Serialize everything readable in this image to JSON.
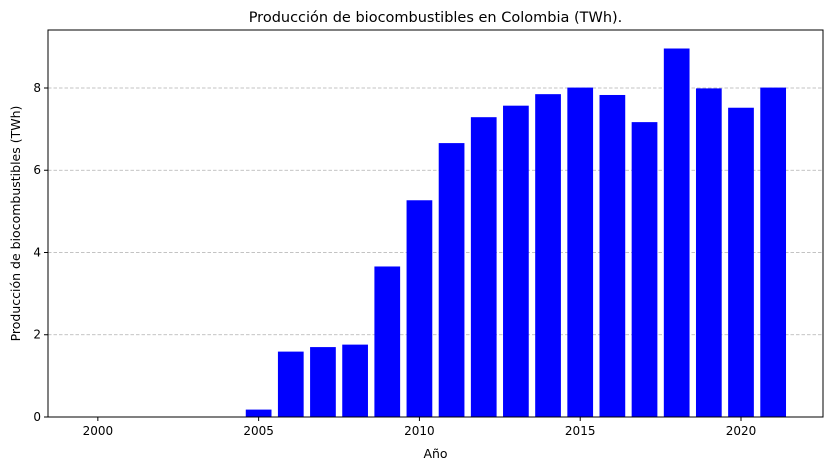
{
  "chart_data": {
    "type": "bar",
    "title": "Producción de biocombustibles en Colombia (TWh).",
    "xlabel": "Año",
    "ylabel": "Producción de biocombustibles (TWh)",
    "x": [
      2000,
      2001,
      2002,
      2003,
      2004,
      2005,
      2006,
      2007,
      2008,
      2009,
      2010,
      2011,
      2012,
      2013,
      2014,
      2015,
      2016,
      2017,
      2018,
      2019,
      2020,
      2021
    ],
    "values": [
      0,
      0,
      0,
      0,
      0,
      0.18,
      1.59,
      1.7,
      1.76,
      3.66,
      5.27,
      6.66,
      7.29,
      7.57,
      7.85,
      8.01,
      7.83,
      7.17,
      8.96,
      7.99,
      7.52,
      8.01
    ],
    "xlim": [
      1998.45,
      2022.55
    ],
    "ylim": [
      0,
      9.41
    ],
    "xticks": [
      2000,
      2005,
      2010,
      2015,
      2020
    ],
    "yticks": [
      0,
      2,
      4,
      6,
      8
    ],
    "grid": "y, dashed",
    "bar_color": "#0000ff"
  }
}
